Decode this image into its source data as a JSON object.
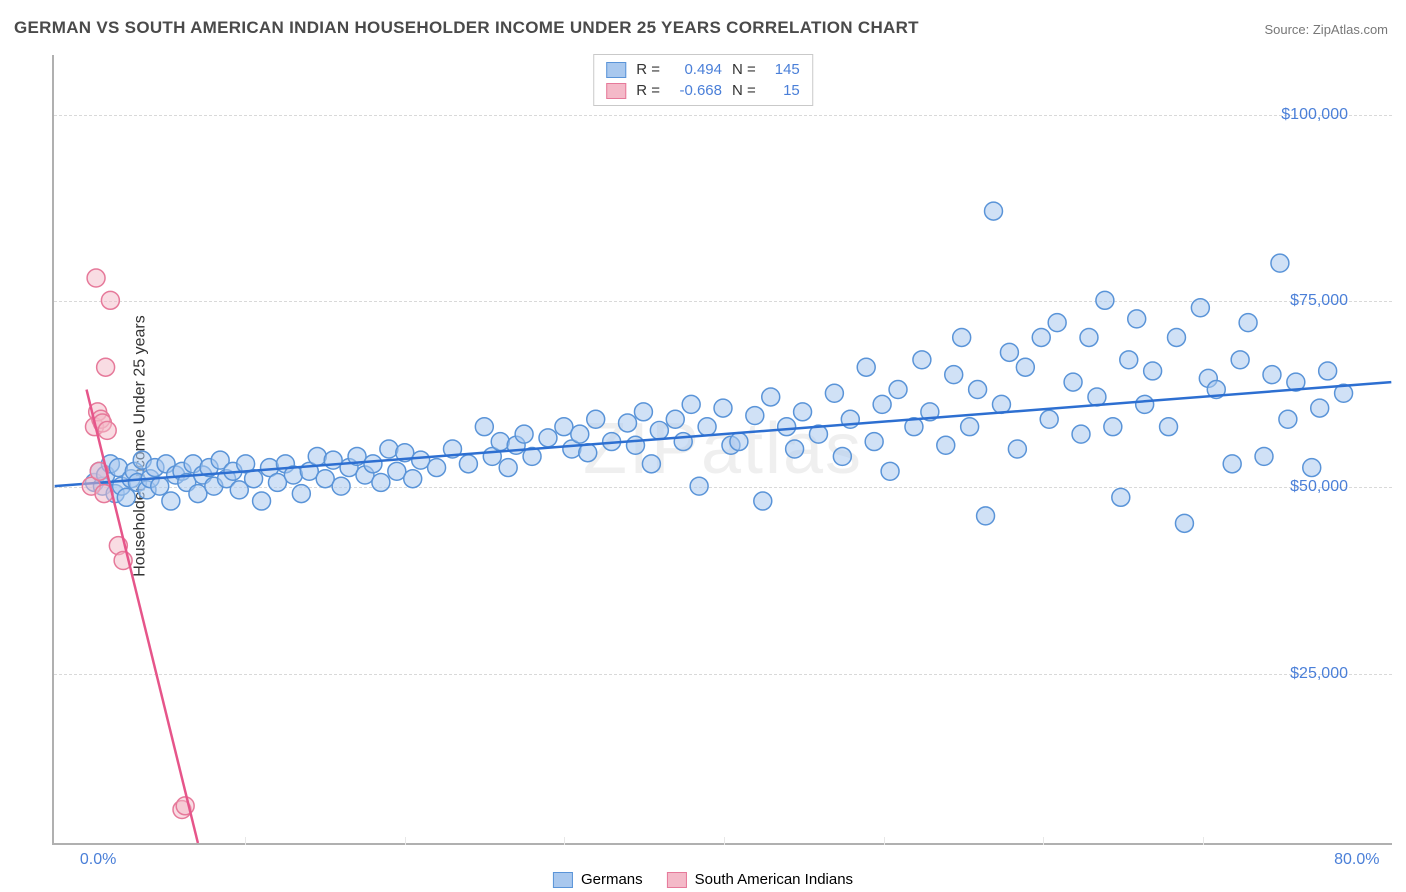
{
  "title": "GERMAN VS SOUTH AMERICAN INDIAN HOUSEHOLDER INCOME UNDER 25 YEARS CORRELATION CHART",
  "source": "Source: ZipAtlas.com",
  "watermark": "ZIPatlas",
  "y_axis_title": "Householder Income Under 25 years",
  "chart": {
    "type": "scatter",
    "background_color": "#ffffff",
    "grid_color": "#d9d9d9",
    "xlim": [
      -2,
      82
    ],
    "ylim": [
      2000,
      108000
    ],
    "x_ticks": [
      0,
      80
    ],
    "x_tick_labels": [
      "0.0%",
      "80.0%"
    ],
    "x_minor_ticks": [
      10,
      20,
      30,
      40,
      50,
      60,
      70
    ],
    "y_ticks": [
      25000,
      50000,
      75000,
      100000
    ],
    "y_tick_labels": [
      "$25,000",
      "$50,000",
      "$75,000",
      "$100,000"
    ],
    "marker_radius": 9,
    "marker_stroke_width": 1.5,
    "trend_line_width": 2.5,
    "series": [
      {
        "name": "Germans",
        "fill": "#a9c8ee",
        "stroke": "#5a94d8",
        "fill_opacity": 0.55,
        "trend_color": "#2d6fd1",
        "R": 0.494,
        "N": 145,
        "trend_line": {
          "x1": -2,
          "y1": 50000,
          "x2": 82,
          "y2": 64000
        },
        "points": [
          [
            0.5,
            50500
          ],
          [
            0.8,
            52000
          ],
          [
            1,
            50000
          ],
          [
            1.2,
            51500
          ],
          [
            1.5,
            53000
          ],
          [
            1.8,
            49000
          ],
          [
            2,
            52500
          ],
          [
            2.2,
            50000
          ],
          [
            2.5,
            48500
          ],
          [
            2.8,
            51000
          ],
          [
            3,
            52000
          ],
          [
            3.2,
            50500
          ],
          [
            3.5,
            53500
          ],
          [
            3.8,
            49500
          ],
          [
            4,
            51000
          ],
          [
            4.3,
            52500
          ],
          [
            4.6,
            50000
          ],
          [
            5,
            53000
          ],
          [
            5.3,
            48000
          ],
          [
            5.6,
            51500
          ],
          [
            6,
            52000
          ],
          [
            6.3,
            50500
          ],
          [
            6.7,
            53000
          ],
          [
            7,
            49000
          ],
          [
            7.3,
            51500
          ],
          [
            7.7,
            52500
          ],
          [
            8,
            50000
          ],
          [
            8.4,
            53500
          ],
          [
            8.8,
            51000
          ],
          [
            9.2,
            52000
          ],
          [
            9.6,
            49500
          ],
          [
            10,
            53000
          ],
          [
            10.5,
            51000
          ],
          [
            11,
            48000
          ],
          [
            11.5,
            52500
          ],
          [
            12,
            50500
          ],
          [
            12.5,
            53000
          ],
          [
            13,
            51500
          ],
          [
            13.5,
            49000
          ],
          [
            14,
            52000
          ],
          [
            14.5,
            54000
          ],
          [
            15,
            51000
          ],
          [
            15.5,
            53500
          ],
          [
            16,
            50000
          ],
          [
            16.5,
            52500
          ],
          [
            17,
            54000
          ],
          [
            17.5,
            51500
          ],
          [
            18,
            53000
          ],
          [
            18.5,
            50500
          ],
          [
            19,
            55000
          ],
          [
            19.5,
            52000
          ],
          [
            20,
            54500
          ],
          [
            20.5,
            51000
          ],
          [
            21,
            53500
          ],
          [
            22,
            52500
          ],
          [
            23,
            55000
          ],
          [
            24,
            53000
          ],
          [
            25,
            58000
          ],
          [
            25.5,
            54000
          ],
          [
            26,
            56000
          ],
          [
            26.5,
            52500
          ],
          [
            27,
            55500
          ],
          [
            27.5,
            57000
          ],
          [
            28,
            54000
          ],
          [
            29,
            56500
          ],
          [
            30,
            58000
          ],
          [
            30.5,
            55000
          ],
          [
            31,
            57000
          ],
          [
            31.5,
            54500
          ],
          [
            32,
            59000
          ],
          [
            33,
            56000
          ],
          [
            34,
            58500
          ],
          [
            34.5,
            55500
          ],
          [
            35,
            60000
          ],
          [
            35.5,
            53000
          ],
          [
            36,
            57500
          ],
          [
            37,
            59000
          ],
          [
            37.5,
            56000
          ],
          [
            38,
            61000
          ],
          [
            38.5,
            50000
          ],
          [
            39,
            58000
          ],
          [
            40,
            60500
          ],
          [
            40.5,
            55500
          ],
          [
            41,
            56000
          ],
          [
            42,
            59500
          ],
          [
            42.5,
            48000
          ],
          [
            43,
            62000
          ],
          [
            44,
            58000
          ],
          [
            44.5,
            55000
          ],
          [
            45,
            60000
          ],
          [
            46,
            57000
          ],
          [
            47,
            62500
          ],
          [
            47.5,
            54000
          ],
          [
            48,
            59000
          ],
          [
            49,
            66000
          ],
          [
            49.5,
            56000
          ],
          [
            50,
            61000
          ],
          [
            50.5,
            52000
          ],
          [
            51,
            63000
          ],
          [
            52,
            58000
          ],
          [
            52.5,
            67000
          ],
          [
            53,
            60000
          ],
          [
            54,
            55500
          ],
          [
            54.5,
            65000
          ],
          [
            55,
            70000
          ],
          [
            55.5,
            58000
          ],
          [
            56,
            63000
          ],
          [
            56.5,
            46000
          ],
          [
            57,
            87000
          ],
          [
            57.5,
            61000
          ],
          [
            58,
            68000
          ],
          [
            58.5,
            55000
          ],
          [
            59,
            66000
          ],
          [
            60,
            70000
          ],
          [
            60.5,
            59000
          ],
          [
            61,
            72000
          ],
          [
            62,
            64000
          ],
          [
            62.5,
            57000
          ],
          [
            63,
            70000
          ],
          [
            63.5,
            62000
          ],
          [
            64,
            75000
          ],
          [
            64.5,
            58000
          ],
          [
            65,
            48500
          ],
          [
            65.5,
            67000
          ],
          [
            66,
            72500
          ],
          [
            66.5,
            61000
          ],
          [
            67,
            65500
          ],
          [
            68,
            58000
          ],
          [
            68.5,
            70000
          ],
          [
            69,
            45000
          ],
          [
            70,
            74000
          ],
          [
            70.5,
            64500
          ],
          [
            71,
            63000
          ],
          [
            72,
            53000
          ],
          [
            72.5,
            67000
          ],
          [
            73,
            72000
          ],
          [
            74,
            54000
          ],
          [
            74.5,
            65000
          ],
          [
            75,
            80000
          ],
          [
            75.5,
            59000
          ],
          [
            76,
            64000
          ],
          [
            77,
            52500
          ],
          [
            77.5,
            60500
          ],
          [
            78,
            65500
          ],
          [
            79,
            62500
          ]
        ]
      },
      {
        "name": "South American Indians",
        "fill": "#f4b9c8",
        "stroke": "#e6799a",
        "fill_opacity": 0.5,
        "trend_color": "#e6558a",
        "R": -0.668,
        "N": 15,
        "trend_line": {
          "x1": 0,
          "y1": 63000,
          "x2": 7,
          "y2": 2000
        },
        "points": [
          [
            0.3,
            50000
          ],
          [
            0.5,
            58000
          ],
          [
            0.6,
            78000
          ],
          [
            0.7,
            60000
          ],
          [
            0.8,
            52000
          ],
          [
            0.9,
            59000
          ],
          [
            1.0,
            58500
          ],
          [
            1.1,
            49000
          ],
          [
            1.2,
            66000
          ],
          [
            1.3,
            57500
          ],
          [
            1.5,
            75000
          ],
          [
            2.0,
            42000
          ],
          [
            2.3,
            40000
          ],
          [
            6.0,
            6500
          ],
          [
            6.2,
            7000
          ]
        ]
      }
    ]
  },
  "legend_top": {
    "rows": [
      {
        "swatch_fill": "#a9c8ee",
        "swatch_stroke": "#5a94d8",
        "r_label": "R =",
        "r_val": "0.494",
        "n_label": "N =",
        "n_val": "145"
      },
      {
        "swatch_fill": "#f4b9c8",
        "swatch_stroke": "#e6799a",
        "r_label": "R =",
        "r_val": "-0.668",
        "n_label": "N =",
        "n_val": "15"
      }
    ]
  },
  "legend_bottom": {
    "items": [
      {
        "swatch_fill": "#a9c8ee",
        "swatch_stroke": "#5a94d8",
        "label": "Germans"
      },
      {
        "swatch_fill": "#f4b9c8",
        "swatch_stroke": "#e6799a",
        "label": "South American Indians"
      }
    ]
  }
}
